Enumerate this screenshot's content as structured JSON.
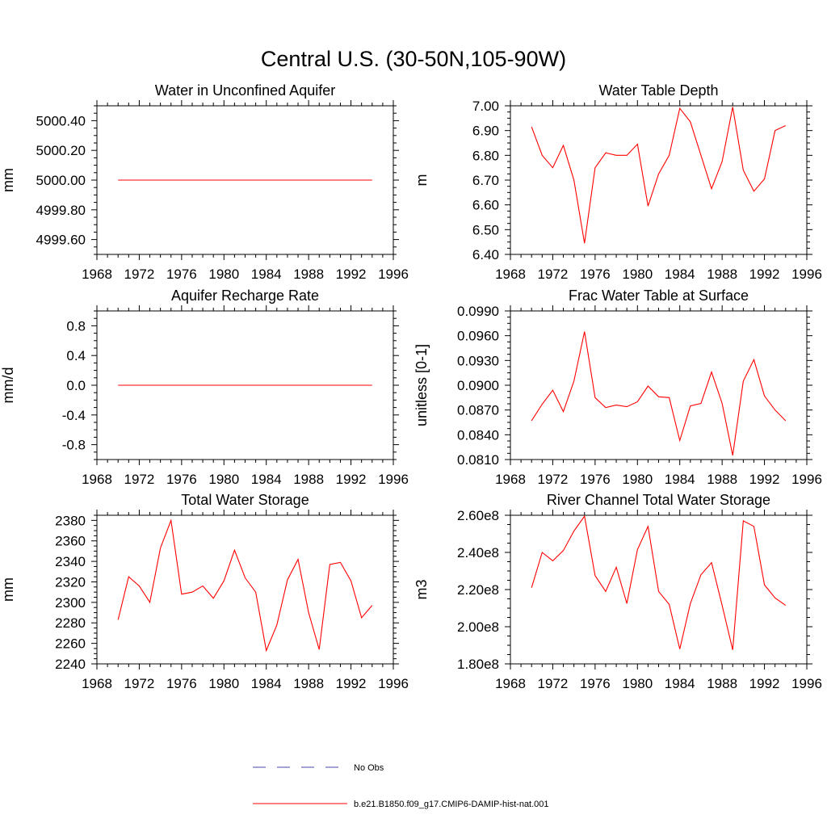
{
  "figure": {
    "title": "Central U.S. (30-50N,105-90W)",
    "colors": {
      "model": "#ff0000",
      "obs": "#4a4aa8",
      "axis": "#000000"
    },
    "legend": {
      "placement": "bottom-center",
      "entries": [
        {
          "label": "No Obs",
          "style": "dashed",
          "color": "#4a4aa8"
        },
        {
          "label": "b.e21.B1850.f09_g17.CMIP6-DAMIP-hist-nat.001",
          "style": "solid",
          "color": "#ff0000"
        }
      ]
    }
  },
  "chart_data": [
    {
      "type": "line",
      "title": "Water in Unconfined Aquifer",
      "ylabel": "mm",
      "xlim": [
        1968,
        1996
      ],
      "xticks": [
        1968,
        1972,
        1976,
        1980,
        1984,
        1988,
        1992,
        1996
      ],
      "ylim": [
        4999.5,
        5000.5
      ],
      "yticks": [
        4999.6,
        4999.8,
        5000.0,
        5000.2,
        5000.4
      ],
      "ytick_labels": [
        "4999.60",
        "4999.80",
        "5000.00",
        "5000.20",
        "5000.40"
      ],
      "x": [
        1970,
        1971,
        1972,
        1973,
        1974,
        1975,
        1976,
        1977,
        1978,
        1979,
        1980,
        1981,
        1982,
        1983,
        1984,
        1985,
        1986,
        1987,
        1988,
        1989,
        1990,
        1991,
        1992,
        1993,
        1994
      ],
      "series": [
        {
          "name": "b.e21.B1850.f09_g17.CMIP6-DAMIP-hist-nat.001",
          "values": [
            5000,
            5000,
            5000,
            5000,
            5000,
            5000,
            5000,
            5000,
            5000,
            5000,
            5000,
            5000,
            5000,
            5000,
            5000,
            5000,
            5000,
            5000,
            5000,
            5000,
            5000,
            5000,
            5000,
            5000,
            5000
          ]
        }
      ]
    },
    {
      "type": "line",
      "title": "Water Table Depth",
      "ylabel": "m",
      "xlim": [
        1968,
        1996
      ],
      "xticks": [
        1968,
        1972,
        1976,
        1980,
        1984,
        1988,
        1992,
        1996
      ],
      "ylim": [
        6.4,
        7.0
      ],
      "yticks": [
        6.4,
        6.5,
        6.6,
        6.7,
        6.8,
        6.9,
        7.0
      ],
      "ytick_labels": [
        "6.40",
        "6.50",
        "6.60",
        "6.70",
        "6.80",
        "6.90",
        "7.00"
      ],
      "x": [
        1970,
        1971,
        1972,
        1973,
        1974,
        1975,
        1976,
        1977,
        1978,
        1979,
        1980,
        1981,
        1982,
        1983,
        1984,
        1985,
        1986,
        1987,
        1988,
        1989,
        1990,
        1991,
        1992,
        1993,
        1994
      ],
      "series": [
        {
          "name": "b.e21.B1850.f09_g17.CMIP6-DAMIP-hist-nat.001",
          "values": [
            6.915,
            6.8,
            6.75,
            6.84,
            6.7,
            6.445,
            6.75,
            6.81,
            6.8,
            6.8,
            6.845,
            6.595,
            6.725,
            6.8,
            6.99,
            6.935,
            6.8,
            6.665,
            6.775,
            6.995,
            6.74,
            6.655,
            6.705,
            6.9,
            6.92
          ]
        }
      ]
    },
    {
      "type": "line",
      "title": "Aquifer Recharge Rate",
      "ylabel": "mm/d",
      "xlim": [
        1968,
        1996
      ],
      "xticks": [
        1968,
        1972,
        1976,
        1980,
        1984,
        1988,
        1992,
        1996
      ],
      "ylim": [
        -1.0,
        1.0
      ],
      "yticks": [
        -0.8,
        -0.4,
        0.0,
        0.4,
        0.8
      ],
      "ytick_labels": [
        "-0.8",
        "-0.4",
        "0.0",
        "0.4",
        "0.8"
      ],
      "x": [
        1970,
        1971,
        1972,
        1973,
        1974,
        1975,
        1976,
        1977,
        1978,
        1979,
        1980,
        1981,
        1982,
        1983,
        1984,
        1985,
        1986,
        1987,
        1988,
        1989,
        1990,
        1991,
        1992,
        1993,
        1994
      ],
      "series": [
        {
          "name": "b.e21.B1850.f09_g17.CMIP6-DAMIP-hist-nat.001",
          "values": [
            0,
            0,
            0,
            0,
            0,
            0,
            0,
            0,
            0,
            0,
            0,
            0,
            0,
            0,
            0,
            0,
            0,
            0,
            0,
            0,
            0,
            0,
            0,
            0,
            0
          ]
        }
      ]
    },
    {
      "type": "line",
      "title": "Frac Water Table at Surface",
      "ylabel": "unitless [0-1]",
      "xlim": [
        1968,
        1996
      ],
      "xticks": [
        1968,
        1972,
        1976,
        1980,
        1984,
        1988,
        1992,
        1996
      ],
      "ylim": [
        0.081,
        0.099
      ],
      "yticks": [
        0.081,
        0.084,
        0.087,
        0.09,
        0.093,
        0.096,
        0.099
      ],
      "ytick_labels": [
        "0.0810",
        "0.0840",
        "0.0870",
        "0.0900",
        "0.0930",
        "0.0960",
        "0.0990"
      ],
      "x": [
        1970,
        1971,
        1972,
        1973,
        1974,
        1975,
        1976,
        1977,
        1978,
        1979,
        1980,
        1981,
        1982,
        1983,
        1984,
        1985,
        1986,
        1987,
        1988,
        1989,
        1990,
        1991,
        1992,
        1993,
        1994
      ],
      "series": [
        {
          "name": "b.e21.B1850.f09_g17.CMIP6-DAMIP-hist-nat.001",
          "values": [
            0.0857,
            0.0877,
            0.0894,
            0.0868,
            0.0905,
            0.0965,
            0.0885,
            0.0873,
            0.0876,
            0.0874,
            0.088,
            0.0899,
            0.0886,
            0.0885,
            0.0833,
            0.0875,
            0.0878,
            0.0916,
            0.0878,
            0.0815,
            0.0905,
            0.0931,
            0.0887,
            0.087,
            0.0857
          ]
        }
      ]
    },
    {
      "type": "line",
      "title": "Total Water Storage",
      "ylabel": "mm",
      "xlim": [
        1968,
        1996
      ],
      "xticks": [
        1968,
        1972,
        1976,
        1980,
        1984,
        1988,
        1992,
        1996
      ],
      "ylim": [
        2240,
        2385
      ],
      "yticks": [
        2240,
        2260,
        2280,
        2300,
        2320,
        2340,
        2360,
        2380
      ],
      "ytick_labels": [
        "2240",
        "2260",
        "2280",
        "2300",
        "2320",
        "2340",
        "2360",
        "2380"
      ],
      "x": [
        1970,
        1971,
        1972,
        1973,
        1974,
        1975,
        1976,
        1977,
        1978,
        1979,
        1980,
        1981,
        1982,
        1983,
        1984,
        1985,
        1986,
        1987,
        1988,
        1989,
        1990,
        1991,
        1992,
        1993,
        1994
      ],
      "series": [
        {
          "name": "b.e21.B1850.f09_g17.CMIP6-DAMIP-hist-nat.001",
          "values": [
            2283,
            2325,
            2316,
            2300,
            2353,
            2380,
            2308,
            2310,
            2316,
            2304,
            2321,
            2351,
            2324,
            2310,
            2253,
            2278,
            2322,
            2342,
            2290,
            2254,
            2337,
            2339,
            2321,
            2285,
            2297
          ]
        }
      ]
    },
    {
      "type": "line",
      "title": "River Channel Total Water Storage",
      "ylabel": "m3",
      "xlim": [
        1968,
        1996
      ],
      "xticks": [
        1968,
        1972,
        1976,
        1980,
        1984,
        1988,
        1992,
        1996
      ],
      "ylim": [
        180000000,
        260000000
      ],
      "yticks": [
        180000000,
        200000000,
        220000000,
        240000000,
        260000000
      ],
      "ytick_labels": [
        "1.80e8",
        "2.00e8",
        "2.20e8",
        "2.40e8",
        "2.60e8"
      ],
      "x": [
        1970,
        1971,
        1972,
        1973,
        1974,
        1975,
        1976,
        1977,
        1978,
        1979,
        1980,
        1981,
        1982,
        1983,
        1984,
        1985,
        1986,
        1987,
        1988,
        1989,
        1990,
        1991,
        1992,
        1993,
        1994
      ],
      "series": [
        {
          "name": "b.e21.B1850.f09_g17.CMIP6-DAMIP-hist-nat.001",
          "values": [
            221000000,
            240000000,
            235500000,
            241000000,
            251500000,
            259500000,
            227500000,
            219000000,
            232000000,
            212500000,
            241500000,
            254000000,
            219000000,
            212000000,
            188000000,
            212500000,
            228000000,
            234500000,
            211500000,
            187500000,
            257000000,
            254000000,
            222500000,
            215500000,
            211500000
          ]
        }
      ]
    }
  ]
}
